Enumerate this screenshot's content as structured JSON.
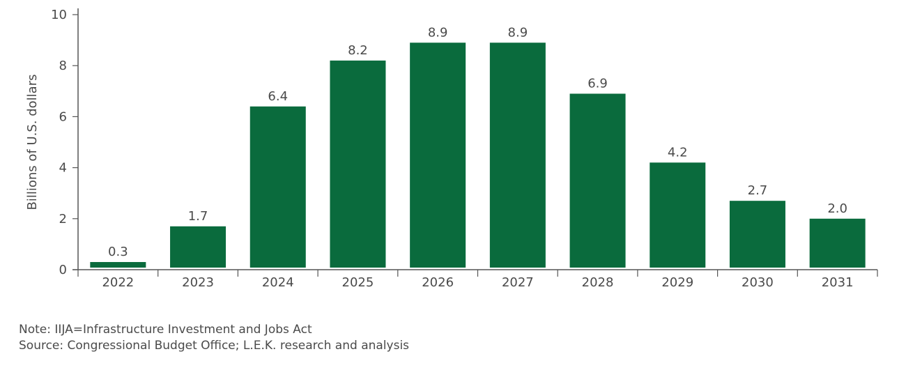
{
  "chart_data": {
    "type": "bar",
    "categories": [
      "2022",
      "2023",
      "2024",
      "2025",
      "2026",
      "2027",
      "2028",
      "2029",
      "2030",
      "2031"
    ],
    "values": [
      0.3,
      1.7,
      6.4,
      8.2,
      8.9,
      8.9,
      6.9,
      4.2,
      2.7,
      2.0
    ],
    "data_labels": [
      "0.3",
      "1.7",
      "6.4",
      "8.2",
      "8.9",
      "8.9",
      "6.9",
      "4.2",
      "2.7",
      "2.0"
    ],
    "title": "",
    "xlabel": "",
    "ylabel": "Billions of U.S. dollars",
    "ylim": [
      0,
      10
    ],
    "yticks": [
      0,
      2,
      4,
      6,
      8,
      10
    ],
    "grid": false,
    "bar_color": "#0a6b3d"
  },
  "notes": {
    "note": "Note: IIJA=Infrastructure Investment and Jobs Act",
    "source": "Source: Congressional Budget Office; L.E.K. research and analysis"
  }
}
